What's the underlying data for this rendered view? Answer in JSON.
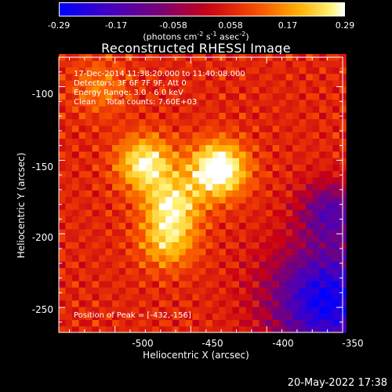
{
  "colorbar": {
    "ticks": [
      "-0.29",
      "-0.17",
      "-0.058",
      "0.058",
      "0.17",
      "0.29"
    ],
    "units_main": "(photons cm",
    "units_exp1": "-2",
    "units_s": " s",
    "units_exp2": "-1",
    "units_asec": " asec",
    "units_exp3": "-2",
    "units_close": ")"
  },
  "plot": {
    "title": "Reconstructed RHESSI Image",
    "info_line1": "17-Dec-2014 11:38:20.000 to 11:40:08.000",
    "info_line2": "Detectors: 3F 6F 7F 9F, Att 0",
    "info_line3": "Energy Range: 3.0 - 6.0 keV",
    "info_line4": "Clean    Total counts: 7.60E+03",
    "peak": "Position of Peak = [-432,-156]",
    "xlabel": "Heliocentric X (arcsec)",
    "ylabel": "Heliocentric Y (arcsec)"
  },
  "stamp": "20-May-2022 17:38",
  "chart_data": {
    "type": "heatmap",
    "title": "Reconstructed RHESSI Image",
    "xlabel": "Heliocentric X (arcsec)",
    "ylabel": "Heliocentric Y (arcsec)",
    "xlim": [
      -537,
      -350
    ],
    "ylim": [
      -267,
      -80
    ],
    "xticks": [
      -500,
      -450,
      -400,
      -350
    ],
    "yticks": [
      -100,
      -150,
      -200,
      -250
    ],
    "colorbar_range": [
      -0.29,
      0.29
    ],
    "colormap": "rainbow-like (blue-purple-red-orange-yellow-white)",
    "peak_position": [
      -432,
      -156
    ],
    "sources": [
      {
        "x": -432,
        "y": -156,
        "amp": 0.29
      },
      {
        "x": -480,
        "y": -152,
        "amp": 0.22
      },
      {
        "x": -462,
        "y": -180,
        "amp": 0.19
      },
      {
        "x": -465,
        "y": -205,
        "amp": 0.16
      },
      {
        "x": -510,
        "y": -100,
        "amp": 0.09
      }
    ]
  }
}
